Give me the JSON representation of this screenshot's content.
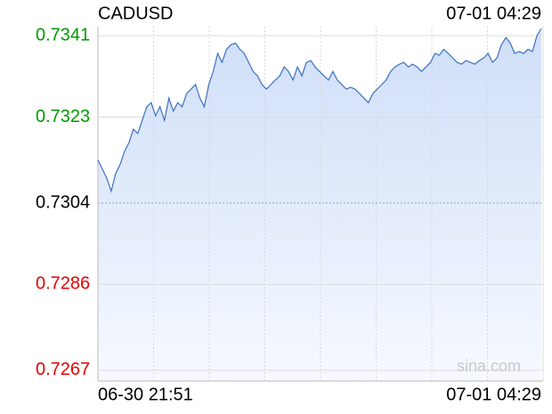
{
  "chart_data": {
    "type": "line",
    "title": "CADUSD",
    "time": "07-01 04:29",
    "watermark": "sina.com",
    "x_labels": [
      "06-30 21:51",
      "07-01 04:29"
    ],
    "values": [
      0.73135,
      0.73115,
      0.73095,
      0.73066,
      0.73105,
      0.73125,
      0.73154,
      0.73174,
      0.73203,
      0.73194,
      0.73223,
      0.73253,
      0.73262,
      0.73233,
      0.73253,
      0.73223,
      0.73272,
      0.73243,
      0.73262,
      0.73253,
      0.73282,
      0.73292,
      0.73302,
      0.73272,
      0.73253,
      0.73302,
      0.73331,
      0.73371,
      0.73351,
      0.7338,
      0.7339,
      0.73394,
      0.7338,
      0.73371,
      0.73351,
      0.73331,
      0.73321,
      0.73302,
      0.73292,
      0.73302,
      0.73312,
      0.73321,
      0.73341,
      0.73331,
      0.73312,
      0.73341,
      0.73321,
      0.73351,
      0.73355,
      0.73341,
      0.73331,
      0.73321,
      0.73312,
      0.73331,
      0.73312,
      0.73302,
      0.73292,
      0.73296,
      0.73292,
      0.73282,
      0.73272,
      0.73262,
      0.73282,
      0.73292,
      0.73302,
      0.73312,
      0.73331,
      0.73341,
      0.73347,
      0.73351,
      0.73341,
      0.73347,
      0.73341,
      0.73331,
      0.73341,
      0.73351,
      0.73371,
      0.73367,
      0.7338,
      0.73371,
      0.73361,
      0.73351,
      0.73347,
      0.73355,
      0.73351,
      0.73347,
      0.73355,
      0.73361,
      0.73371,
      0.73351,
      0.73361,
      0.7339,
      0.73406,
      0.73394,
      0.73371,
      0.73375,
      0.73371,
      0.7338,
      0.73375,
      0.7341,
      0.73426
    ],
    "color": "#3b6fc2",
    "ylim": [
      0.72646,
      0.7343
    ],
    "yticks": [
      0.7341,
      0.7323,
      0.7304,
      0.7286,
      0.7267
    ],
    "yticks_label": [
      "0.7341",
      "0.7323",
      "0.7304",
      "0.7286",
      "0.7267"
    ],
    "reference": 0.7304,
    "up_color": "#009900",
    "down_color": "#e60000",
    "flat_color": "#000000",
    "vertical_grid": 8
  }
}
